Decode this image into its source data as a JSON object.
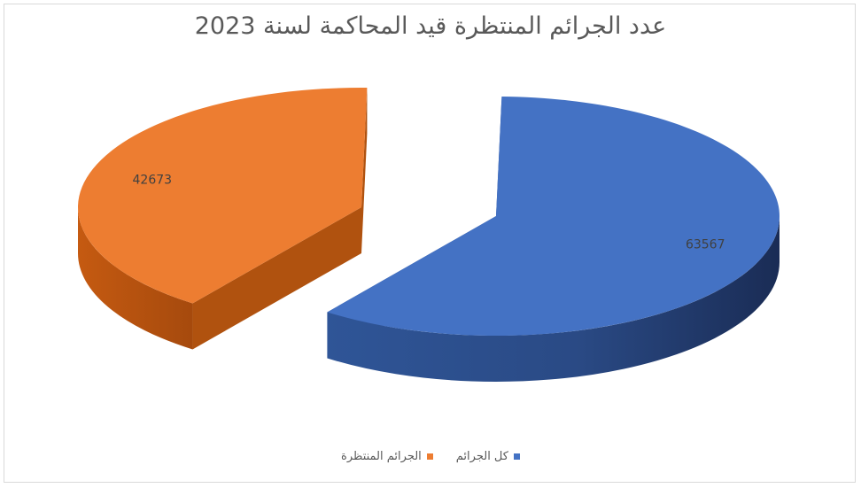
{
  "chart_data": {
    "type": "pie",
    "title": "عدد الجرائم المنتظرة قيد المحاكمة لسنة 2023",
    "categories": [
      "كل الجرائم",
      "الجرائم المنتظرة"
    ],
    "values": [
      63567,
      42673
    ],
    "colors": [
      "#4472c4",
      "#ed7d31"
    ],
    "data_labels": [
      "63567",
      "42673"
    ],
    "legend_position": "bottom",
    "style": "3d-exploded"
  }
}
